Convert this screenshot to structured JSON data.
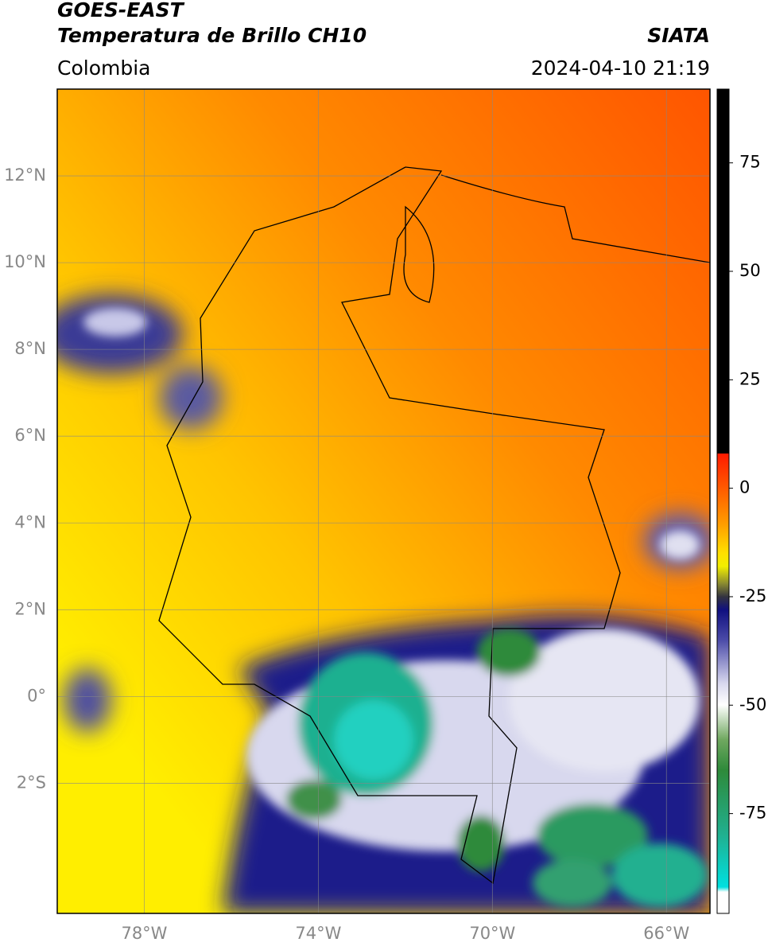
{
  "header": {
    "title": "GOES-EAST",
    "subtitle": "Temperatura de Brillo CH10",
    "region": "Colombia",
    "source": "SIATA",
    "datetime": "2024-04-10 21:19"
  },
  "map": {
    "lon_range": [
      -80,
      -65
    ],
    "lat_range": [
      -5,
      14
    ],
    "grid": true,
    "lon_ticks": [
      {
        "value": -78,
        "label": "78°W"
      },
      {
        "value": -74,
        "label": "74°W"
      },
      {
        "value": -70,
        "label": "70°W"
      },
      {
        "value": -66,
        "label": "66°W"
      }
    ],
    "lat_ticks": [
      {
        "value": 12,
        "label": "12°N"
      },
      {
        "value": 10,
        "label": "10°N"
      },
      {
        "value": 8,
        "label": "8°N"
      },
      {
        "value": 6,
        "label": "6°N"
      },
      {
        "value": 4,
        "label": "4°N"
      },
      {
        "value": 2,
        "label": "2°N"
      },
      {
        "value": 0,
        "label": "0°"
      },
      {
        "value": -2,
        "label": "2°S"
      }
    ]
  },
  "colorbar": {
    "range": [
      -98,
      92
    ],
    "ticks": [
      75,
      50,
      25,
      0,
      -25,
      -50,
      -75
    ]
  }
}
